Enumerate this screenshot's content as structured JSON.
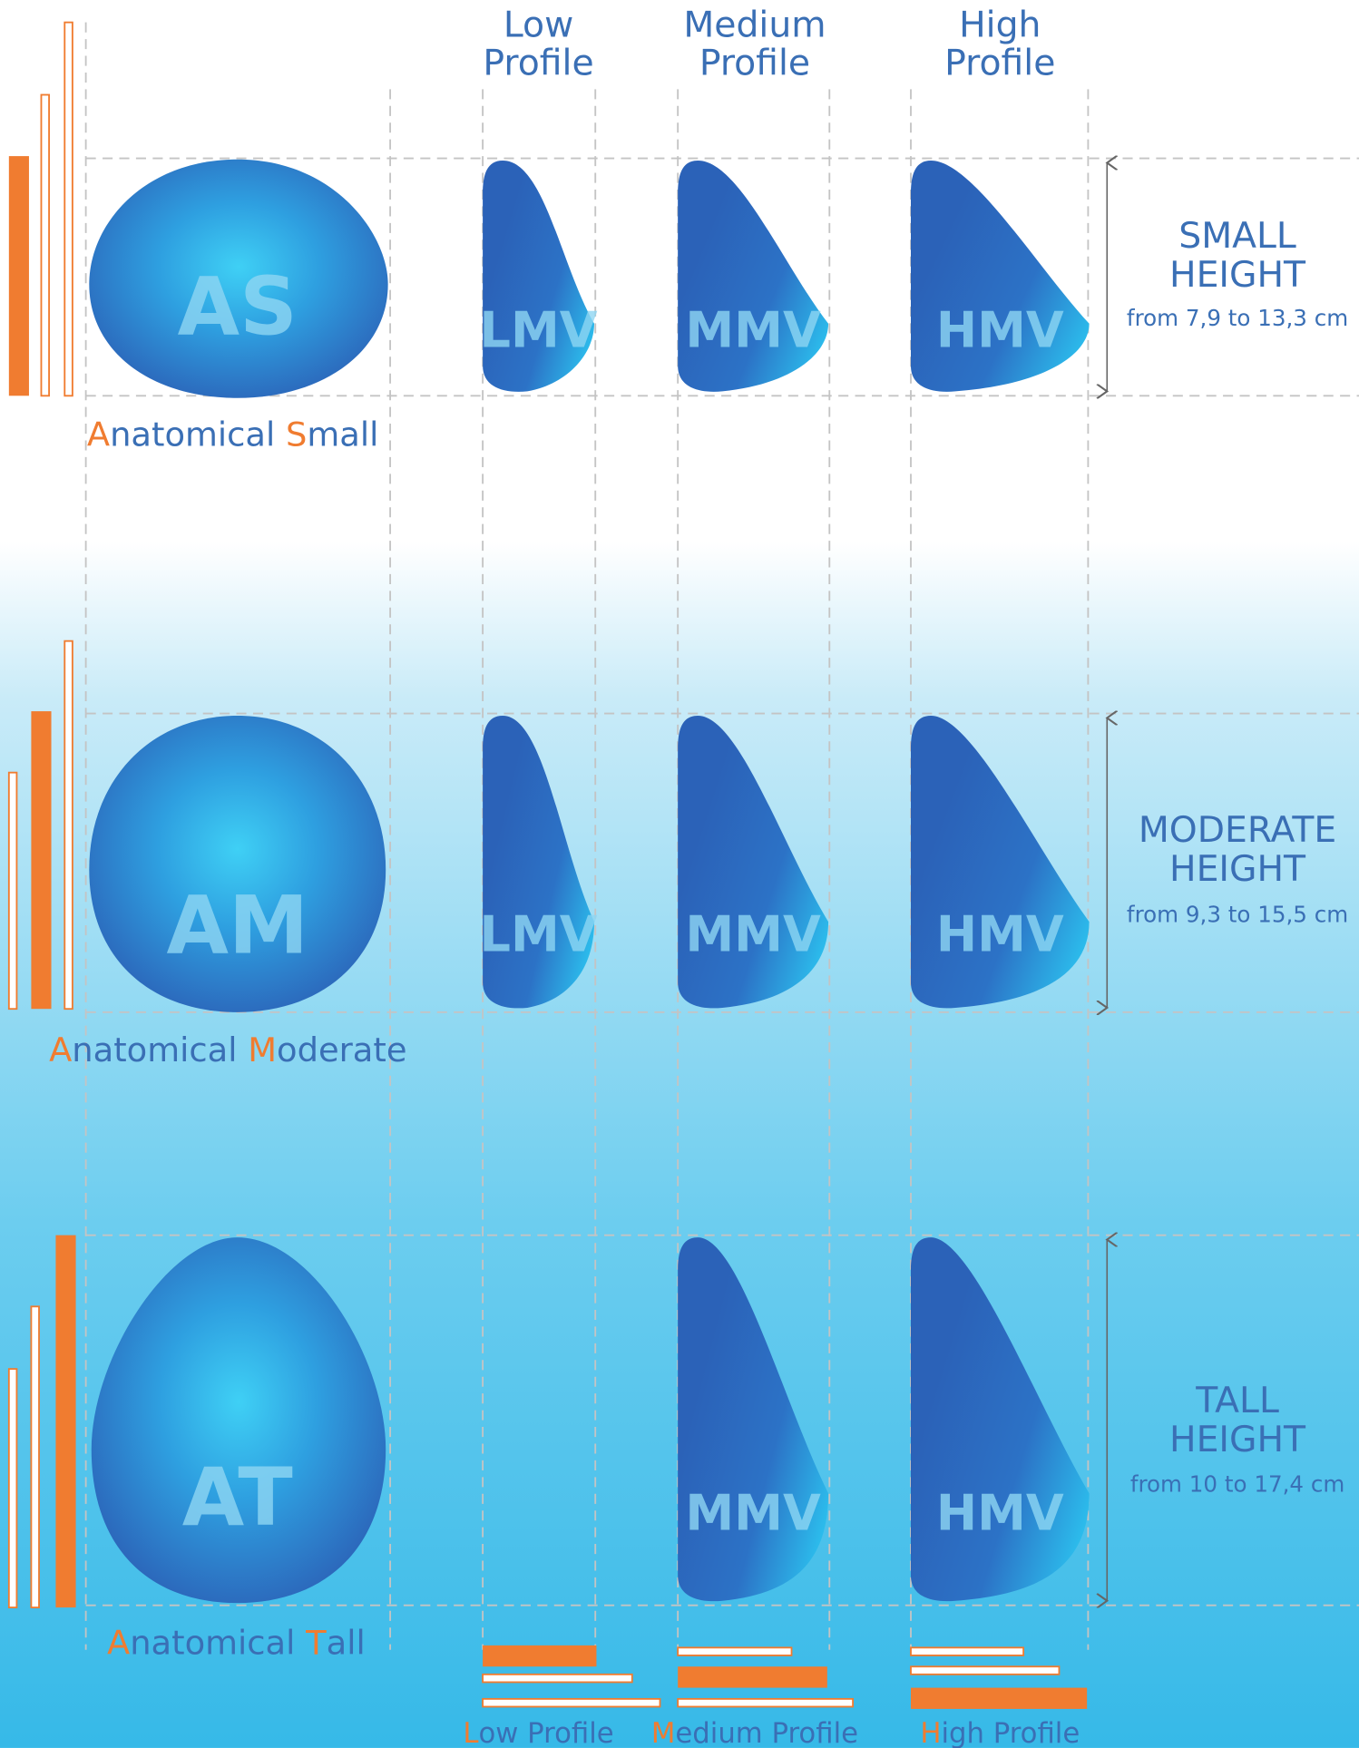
{
  "headers": [
    [
      "Low",
      "Profile"
    ],
    [
      "Medium",
      "Profile"
    ],
    [
      "High",
      "Profile"
    ]
  ],
  "rows": [
    {
      "code": "AS",
      "label": [
        "A",
        "natomical ",
        "S",
        "mall"
      ],
      "implants": [
        "LMV",
        "MMV",
        "HMV"
      ],
      "height": [
        "SMALL",
        "HEIGHT"
      ],
      "range": "from 7,9 to 13,3 cm"
    },
    {
      "code": "AM",
      "label": [
        "A",
        "natomical ",
        "M",
        "oderate"
      ],
      "implants": [
        "LMV",
        "MMV",
        "HMV"
      ],
      "height": [
        "MODERATE",
        "HEIGHT"
      ],
      "range": "from 9,3 to 15,5 cm"
    },
    {
      "code": "AT",
      "label": [
        "A",
        "natomical ",
        "T",
        "all"
      ],
      "implants": [
        null,
        "MMV",
        "HMV"
      ],
      "height": [
        "TALL",
        "HEIGHT"
      ],
      "range": "from 10 to 17,4 cm"
    }
  ],
  "footer": [
    [
      "L",
      "ow Profile"
    ],
    [
      "M",
      "edium Profile"
    ],
    [
      "H",
      "igh Profile"
    ]
  ]
}
